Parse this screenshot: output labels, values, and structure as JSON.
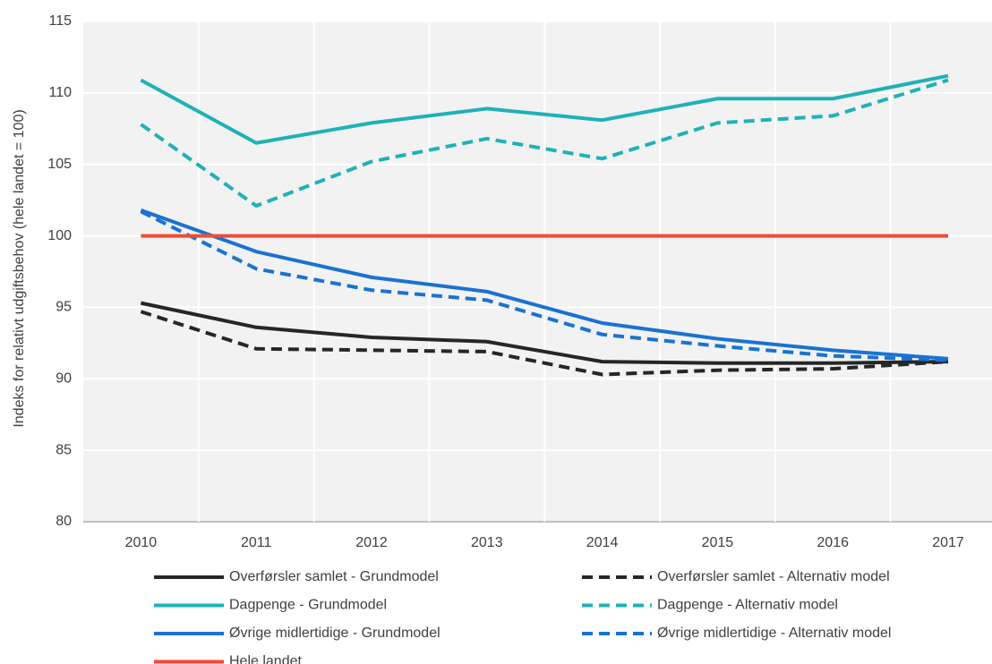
{
  "chart_data": {
    "type": "line",
    "ylabel": "Indeks for relativt udgiftsbehov (hele landet = 100)",
    "categories": [
      "2010",
      "2011",
      "2012",
      "2013",
      "2014",
      "2015",
      "2016",
      "2017"
    ],
    "ylim": [
      80,
      115
    ],
    "yticks": [
      80,
      85,
      90,
      95,
      100,
      105,
      110,
      115
    ],
    "grid": true,
    "series": [
      {
        "name": "Overførsler samlet - Grundmodel",
        "color": "#262626",
        "dashed": false,
        "values": [
          95.3,
          93.6,
          92.9,
          92.6,
          91.2,
          91.1,
          91.1,
          91.2
        ]
      },
      {
        "name": "Overførsler samlet - Alternativ model",
        "color": "#262626",
        "dashed": true,
        "values": [
          94.7,
          92.1,
          92.0,
          91.9,
          90.3,
          90.6,
          90.7,
          91.2
        ]
      },
      {
        "name": "Dagpenge - Grundmodel",
        "color": "#1fb1b7",
        "dashed": false,
        "values": [
          110.9,
          106.5,
          107.9,
          108.9,
          108.1,
          109.6,
          109.6,
          111.2
        ]
      },
      {
        "name": "Dagpenge - Alternativ model",
        "color": "#1fb1b7",
        "dashed": true,
        "values": [
          107.8,
          102.1,
          105.2,
          106.8,
          105.4,
          107.9,
          108.4,
          110.9
        ]
      },
      {
        "name": "Øvrige midlertidige - Grundmodel",
        "color": "#1a72d2",
        "dashed": false,
        "values": [
          101.8,
          98.9,
          97.1,
          96.1,
          93.9,
          92.8,
          92.0,
          91.4
        ]
      },
      {
        "name": "Øvrige midlertidige - Alternativ model",
        "color": "#1a72d2",
        "dashed": true,
        "values": [
          101.7,
          97.7,
          96.2,
          95.5,
          93.1,
          92.3,
          91.6,
          91.3
        ]
      },
      {
        "name": "Hele landet",
        "color": "#f04b37",
        "dashed": false,
        "values": [
          100,
          100,
          100,
          100,
          100,
          100,
          100,
          100
        ]
      }
    ]
  }
}
